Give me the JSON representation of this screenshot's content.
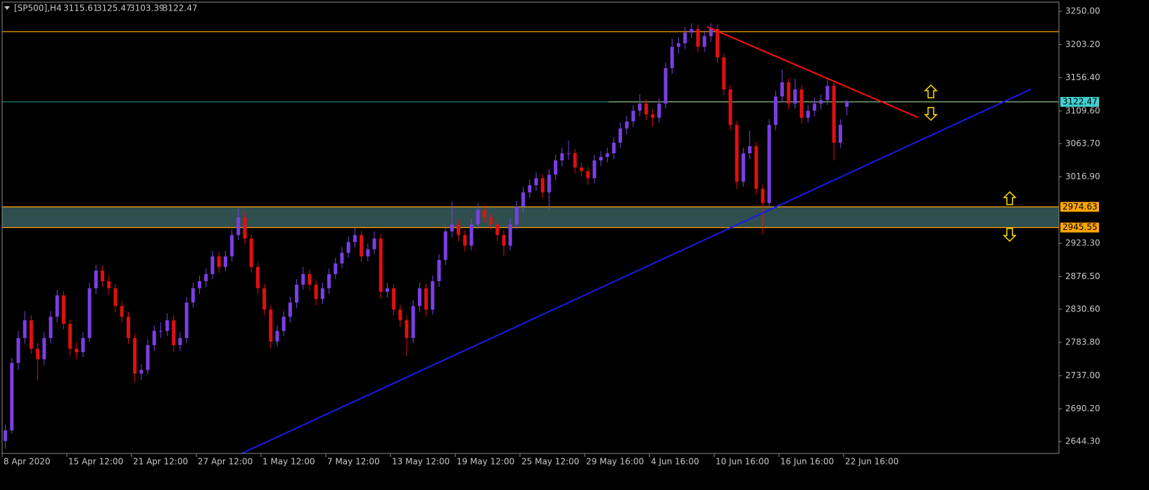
{
  "chart_data": {
    "type": "candlestick",
    "symbol": "[SP500],H4",
    "up_color": "#7b3fe4",
    "down_color": "#e01010",
    "ylim": [
      2627.5,
      3262.9
    ],
    "yticks": [
      {
        "value": 3250,
        "label": "3250.00"
      },
      {
        "value": 3203.2,
        "label": "3203.20"
      },
      {
        "value": 3156.4,
        "label": "3156.40"
      },
      {
        "value": 3109.6,
        "label": "3109.60"
      },
      {
        "value": 3063.7,
        "label": "3063.70"
      },
      {
        "value": 3016.9,
        "label": "3016.90"
      },
      {
        "value": 2923.3,
        "label": "2923.30"
      },
      {
        "value": 2876.5,
        "label": "2876.50"
      },
      {
        "value": 2830.6,
        "label": "2830.60"
      },
      {
        "value": 2783.8,
        "label": "2783.80"
      },
      {
        "value": 2737,
        "label": "2737.00"
      },
      {
        "value": 2690.2,
        "label": "2690.20"
      },
      {
        "value": 2644.3,
        "label": "2644.30"
      }
    ],
    "categories": [
      "8 Apr 2020",
      null,
      null,
      null,
      null,
      null,
      null,
      null,
      null,
      null,
      "15 Apr 12:00",
      null,
      null,
      null,
      null,
      null,
      null,
      null,
      null,
      null,
      "21 Apr 12:00",
      null,
      null,
      null,
      null,
      null,
      null,
      null,
      null,
      null,
      "27 Apr 12:00",
      null,
      null,
      null,
      null,
      null,
      null,
      null,
      null,
      null,
      "1 May 12:00",
      null,
      null,
      null,
      null,
      null,
      null,
      null,
      null,
      null,
      "7 May 12:00",
      null,
      null,
      null,
      null,
      null,
      null,
      null,
      null,
      null,
      "13 May 12:00",
      null,
      null,
      null,
      null,
      null,
      null,
      null,
      null,
      null,
      "19 May 12:00",
      null,
      null,
      null,
      null,
      null,
      null,
      null,
      null,
      null,
      "25 May 12:00",
      null,
      null,
      null,
      null,
      null,
      null,
      null,
      null,
      null,
      "29 May 16:00",
      null,
      null,
      null,
      null,
      null,
      null,
      null,
      null,
      null,
      "4 Jun 16:00",
      null,
      null,
      null,
      null,
      null,
      null,
      null,
      null,
      null,
      "10 Jun 16:00",
      null,
      null,
      null,
      null,
      null,
      null,
      null,
      null,
      null,
      "16 Jun 16:00",
      null,
      null,
      null,
      null,
      null,
      null,
      null,
      null,
      null,
      "22 Jun 16:00"
    ],
    "ohlc": [
      [
        2645,
        2668,
        2634,
        2660
      ],
      [
        2660,
        2762,
        2655,
        2755
      ],
      [
        2755,
        2800,
        2745,
        2790
      ],
      [
        2790,
        2828,
        2782,
        2815
      ],
      [
        2815,
        2822,
        2768,
        2775
      ],
      [
        2775,
        2783,
        2730,
        2760
      ],
      [
        2760,
        2798,
        2752,
        2790
      ],
      [
        2790,
        2828,
        2783,
        2820
      ],
      [
        2820,
        2858,
        2812,
        2850
      ],
      [
        2850,
        2856,
        2802,
        2810
      ],
      [
        2810,
        2816,
        2766,
        2775
      ],
      [
        2775,
        2784,
        2760,
        2770
      ],
      [
        2770,
        2798,
        2763,
        2790
      ],
      [
        2790,
        2868,
        2784,
        2860
      ],
      [
        2860,
        2893,
        2852,
        2885
      ],
      [
        2885,
        2892,
        2862,
        2870
      ],
      [
        2870,
        2878,
        2851,
        2860
      ],
      [
        2860,
        2866,
        2826,
        2835
      ],
      [
        2835,
        2842,
        2812,
        2820
      ],
      [
        2820,
        2827,
        2782,
        2790
      ],
      [
        2790,
        2796,
        2728,
        2740
      ],
      [
        2740,
        2753,
        2731,
        2745
      ],
      [
        2745,
        2788,
        2739,
        2780
      ],
      [
        2780,
        2808,
        2772,
        2800
      ],
      [
        2800,
        2812,
        2790,
        2800
      ],
      [
        2800,
        2825,
        2793,
        2815
      ],
      [
        2815,
        2822,
        2770,
        2780
      ],
      [
        2780,
        2798,
        2772,
        2790
      ],
      [
        2790,
        2848,
        2783,
        2840
      ],
      [
        2840,
        2868,
        2833,
        2860
      ],
      [
        2860,
        2878,
        2852,
        2870
      ],
      [
        2870,
        2888,
        2861,
        2880
      ],
      [
        2880,
        2913,
        2873,
        2905
      ],
      [
        2905,
        2911,
        2882,
        2890
      ],
      [
        2890,
        2913,
        2884,
        2905
      ],
      [
        2905,
        2943,
        2898,
        2935
      ],
      [
        2935,
        2972,
        2928,
        2960
      ],
      [
        2960,
        2968,
        2922,
        2930
      ],
      [
        2930,
        2936,
        2882,
        2890
      ],
      [
        2890,
        2896,
        2852,
        2860
      ],
      [
        2860,
        2866,
        2822,
        2830
      ],
      [
        2830,
        2836,
        2775,
        2785
      ],
      [
        2785,
        2808,
        2778,
        2800
      ],
      [
        2800,
        2828,
        2793,
        2820
      ],
      [
        2820,
        2848,
        2812,
        2840
      ],
      [
        2840,
        2873,
        2832,
        2865
      ],
      [
        2865,
        2890,
        2858,
        2880
      ],
      [
        2880,
        2886,
        2857,
        2865
      ],
      [
        2865,
        2871,
        2836,
        2845
      ],
      [
        2845,
        2868,
        2838,
        2860
      ],
      [
        2860,
        2888,
        2852,
        2880
      ],
      [
        2880,
        2903,
        2873,
        2895
      ],
      [
        2895,
        2918,
        2888,
        2910
      ],
      [
        2910,
        2933,
        2903,
        2925
      ],
      [
        2925,
        2945,
        2917,
        2935
      ],
      [
        2935,
        2941,
        2897,
        2905
      ],
      [
        2905,
        2923,
        2898,
        2915
      ],
      [
        2915,
        2940,
        2908,
        2930
      ],
      [
        2930,
        2936,
        2845,
        2855
      ],
      [
        2855,
        2868,
        2847,
        2860
      ],
      [
        2860,
        2866,
        2822,
        2830
      ],
      [
        2830,
        2837,
        2806,
        2815
      ],
      [
        2815,
        2822,
        2765,
        2790
      ],
      [
        2790,
        2843,
        2783,
        2835
      ],
      [
        2835,
        2868,
        2827,
        2860
      ],
      [
        2860,
        2866,
        2820,
        2830
      ],
      [
        2830,
        2878,
        2823,
        2870
      ],
      [
        2870,
        2908,
        2862,
        2900
      ],
      [
        2900,
        2948,
        2893,
        2940
      ],
      [
        2940,
        2982,
        2932,
        2950
      ],
      [
        2950,
        2957,
        2926,
        2935
      ],
      [
        2935,
        2942,
        2912,
        2920
      ],
      [
        2920,
        2958,
        2913,
        2950
      ],
      [
        2950,
        2980,
        2943,
        2970
      ],
      [
        2970,
        2977,
        2952,
        2960
      ],
      [
        2960,
        2966,
        2942,
        2950
      ],
      [
        2950,
        2956,
        2927,
        2935
      ],
      [
        2935,
        2942,
        2905,
        2920
      ],
      [
        2920,
        2958,
        2913,
        2950
      ],
      [
        2950,
        2983,
        2943,
        2975
      ],
      [
        2975,
        3003,
        2967,
        2995
      ],
      [
        2995,
        3013,
        2987,
        3005
      ],
      [
        3005,
        3023,
        2997,
        3015
      ],
      [
        3015,
        3021,
        2987,
        2995
      ],
      [
        2995,
        3028,
        2971,
        3020
      ],
      [
        3020,
        3048,
        3012,
        3040
      ],
      [
        3040,
        3058,
        3032,
        3050
      ],
      [
        3050,
        3068,
        3041,
        3050
      ],
      [
        3050,
        3056,
        3022,
        3030
      ],
      [
        3030,
        3037,
        3017,
        3025
      ],
      [
        3025,
        3031,
        3006,
        3015
      ],
      [
        3015,
        3048,
        3008,
        3040
      ],
      [
        3040,
        3053,
        3032,
        3045
      ],
      [
        3045,
        3058,
        3037,
        3050
      ],
      [
        3050,
        3073,
        3042,
        3065
      ],
      [
        3065,
        3093,
        3058,
        3085
      ],
      [
        3085,
        3103,
        3077,
        3095
      ],
      [
        3095,
        3118,
        3087,
        3110
      ],
      [
        3110,
        3133,
        3102,
        3120
      ],
      [
        3120,
        3126,
        3097,
        3105
      ],
      [
        3105,
        3112,
        3088,
        3100
      ],
      [
        3100,
        3128,
        3093,
        3120
      ],
      [
        3120,
        3178,
        3113,
        3170
      ],
      [
        3170,
        3212,
        3162,
        3200
      ],
      [
        3200,
        3213,
        3190,
        3205
      ],
      [
        3205,
        3228,
        3197,
        3220
      ],
      [
        3220,
        3233,
        3212,
        3225
      ],
      [
        3225,
        3231,
        3192,
        3200
      ],
      [
        3200,
        3223,
        3193,
        3215
      ],
      [
        3215,
        3233,
        3207,
        3225
      ],
      [
        3225,
        3231,
        3177,
        3185
      ],
      [
        3185,
        3191,
        3132,
        3140
      ],
      [
        3140,
        3146,
        3082,
        3090
      ],
      [
        3090,
        3096,
        3000,
        3010
      ],
      [
        3010,
        3058,
        3003,
        3050
      ],
      [
        3050,
        3082,
        3042,
        3060
      ],
      [
        3060,
        3066,
        2992,
        3000
      ],
      [
        3000,
        3006,
        2936,
        2980
      ],
      [
        2980,
        3098,
        2973,
        3090
      ],
      [
        3090,
        3138,
        3082,
        3130
      ],
      [
        3130,
        3168,
        3122,
        3150
      ],
      [
        3150,
        3156,
        3112,
        3120
      ],
      [
        3120,
        3155,
        3113,
        3140
      ],
      [
        3140,
        3146,
        3092,
        3100
      ],
      [
        3100,
        3118,
        3093,
        3110
      ],
      [
        3110,
        3128,
        3102,
        3120
      ],
      [
        3120,
        3133,
        3112,
        3125
      ],
      [
        3125,
        3155,
        3118,
        3145
      ],
      [
        3145,
        3151,
        3040,
        3065
      ],
      [
        3065,
        3098,
        3058,
        3090
      ],
      [
        3115.61,
        3125.47,
        3103.39,
        3122.47
      ]
    ],
    "levels": [
      {
        "value": 3221.3,
        "color": "#ffa500"
      },
      {
        "value": 3122.47,
        "color": "#ffa500",
        "start": 93.2
      },
      {
        "value": 2974.63,
        "color": "#ffa500",
        "tag": true
      },
      {
        "value": 2945.55,
        "color": "#ffa500",
        "tag": true
      }
    ],
    "zone_color": "#2f4f4f",
    "bid": {
      "value": 3122.47,
      "color": "#40d0d0"
    },
    "trendlines": [
      {
        "color": "#ff1010",
        "points": [
          [
            108.4,
            3228.2
          ],
          [
            141.0,
            3100.6
          ]
        ]
      },
      {
        "color": "#1a1ae6",
        "points": [
          [
            36.5,
            2627.5
          ],
          [
            158.4,
            3140.1
          ]
        ]
      }
    ]
  }
}
